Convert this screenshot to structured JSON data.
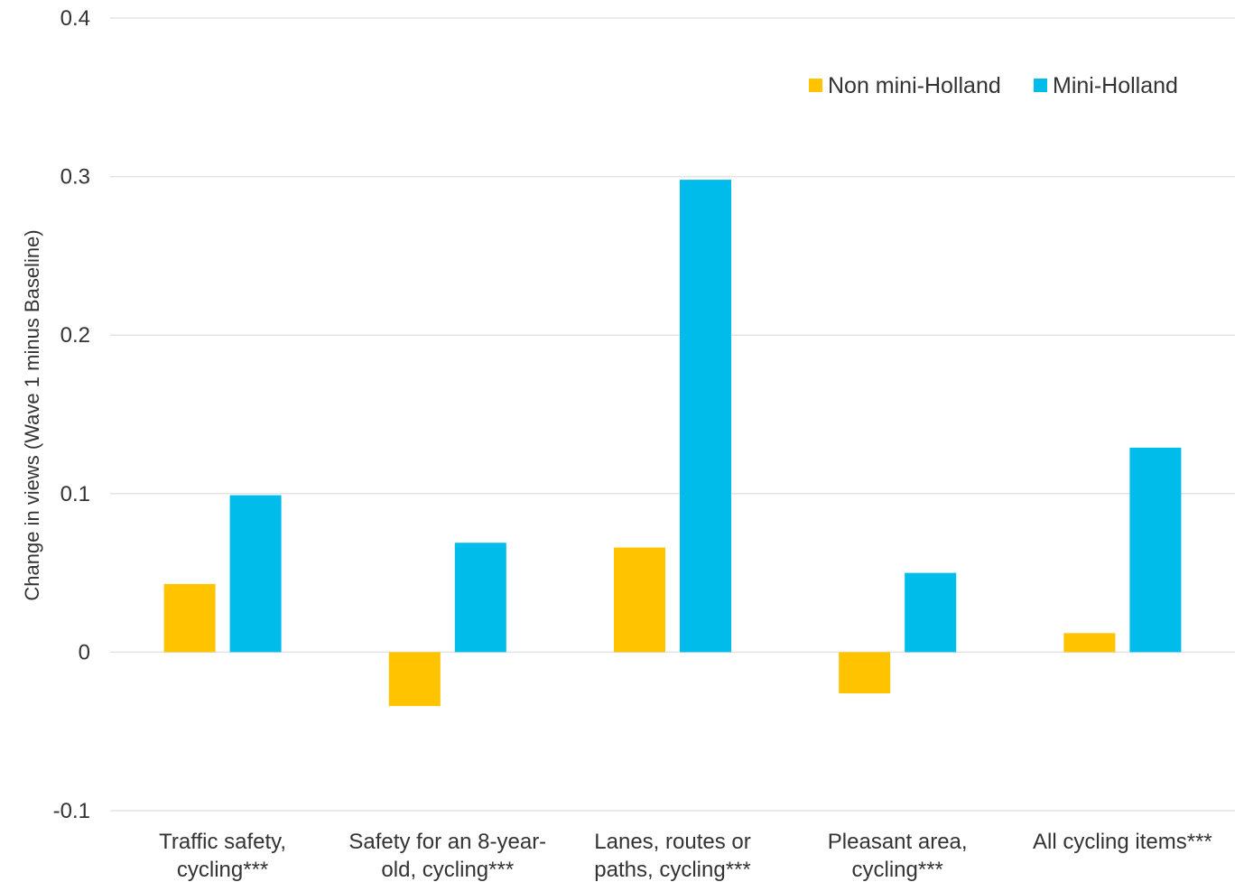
{
  "chart_data": {
    "type": "bar",
    "categories": [
      [
        "Traffic safety,",
        "cycling***"
      ],
      [
        "Safety for an 8-year-",
        "old, cycling***"
      ],
      [
        "Lanes, routes or",
        "paths, cycling***"
      ],
      [
        "Pleasant area,",
        "cycling***"
      ],
      [
        "All cycling items***"
      ]
    ],
    "series": [
      {
        "name": "Non mini-Holland",
        "color": "#FFC300",
        "values": [
          0.043,
          -0.034,
          0.066,
          -0.026,
          0.012
        ]
      },
      {
        "name": "Mini-Holland",
        "color": "#00BCEB",
        "values": [
          0.099,
          0.069,
          0.298,
          0.05,
          0.129
        ]
      }
    ],
    "yticks": [
      "-0.1",
      "0",
      "0.1",
      "0.2",
      "0.3",
      "0.4"
    ],
    "ylim": [
      -0.1,
      0.4
    ],
    "ylabel": "Change in views (Wave 1 minus Baseline)",
    "xlabel": "",
    "title": "",
    "grid": true,
    "legend_position": "top-right"
  }
}
